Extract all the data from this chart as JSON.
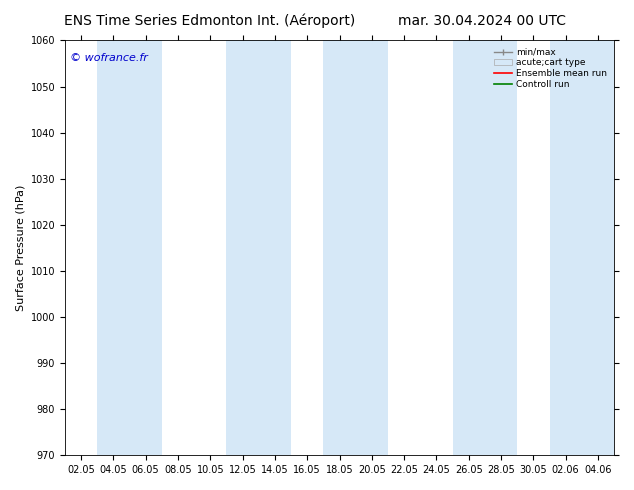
{
  "title_left": "ENS Time Series Edmonton Int. (Aéroport)",
  "title_right": "mar. 30.04.2024 00 UTC",
  "ylabel": "Surface Pressure (hPa)",
  "ylim": [
    970,
    1060
  ],
  "yticks": [
    970,
    980,
    990,
    1000,
    1010,
    1020,
    1030,
    1040,
    1050,
    1060
  ],
  "xlabel_ticks": [
    "02.05",
    "04.05",
    "06.05",
    "08.05",
    "10.05",
    "12.05",
    "14.05",
    "16.05",
    "18.05",
    "20.05",
    "22.05",
    "24.05",
    "26.05",
    "28.05",
    "30.05",
    "02.06",
    "04.06"
  ],
  "watermark": "© wofrance.fr",
  "watermark_color": "#0000cc",
  "bg_color": "#ffffff",
  "plot_bg_color": "#ffffff",
  "band_color": "#d6e8f7",
  "grid_color": "#cccccc",
  "legend_labels": [
    "min/max",
    "acute;cart type",
    "Ensemble mean run",
    "Controll run"
  ],
  "legend_line_colors": [
    "#888888",
    "#d6e8f7",
    "#ff0000",
    "#008000"
  ],
  "title_fontsize": 10,
  "axis_fontsize": 8,
  "tick_fontsize": 7,
  "watermark_fontsize": 8
}
